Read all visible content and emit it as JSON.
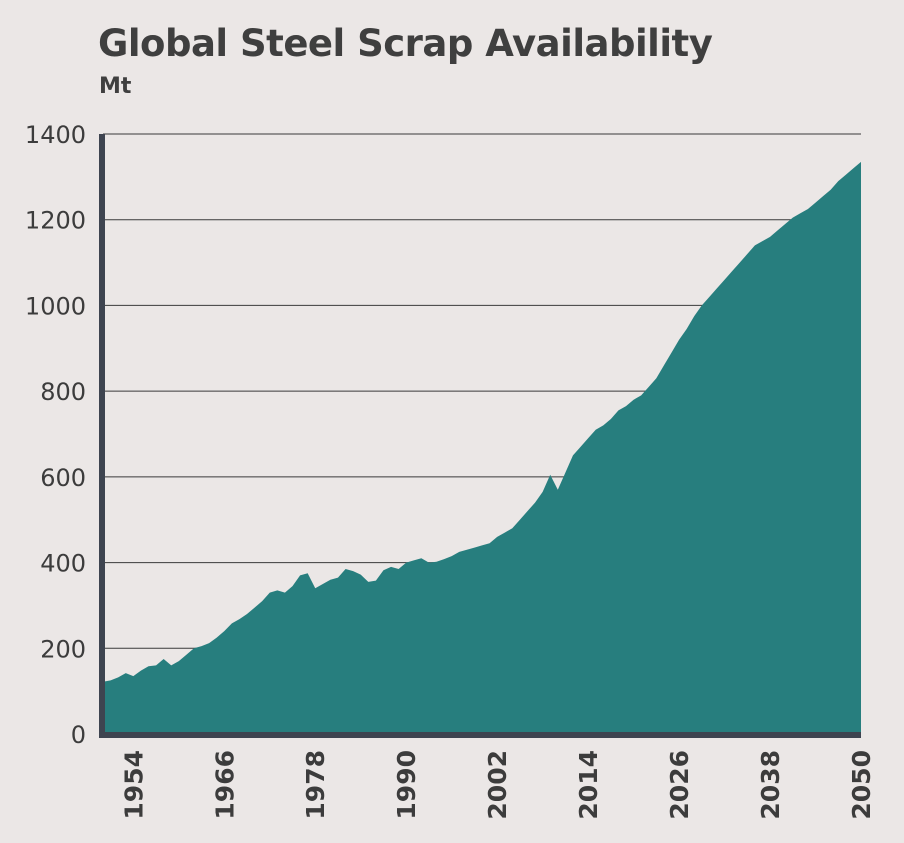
{
  "chart_data": {
    "type": "area",
    "title": "Global Steel Scrap Availability",
    "subtitle": "Mt",
    "xlabel": "",
    "ylabel": "",
    "ylim": [
      0,
      1400
    ],
    "xlim": [
      1950,
      2050
    ],
    "yticks": [
      "0",
      "200",
      "400",
      "600",
      "800",
      "1000",
      "1200",
      "1400"
    ],
    "xticks": [
      "1954",
      "1966",
      "1978",
      "1990",
      "2002",
      "2014",
      "2026",
      "2038",
      "2050"
    ],
    "grid": true,
    "color": "#277e7e",
    "x": [
      1950,
      1951,
      1952,
      1953,
      1954,
      1955,
      1956,
      1957,
      1958,
      1959,
      1960,
      1961,
      1962,
      1963,
      1964,
      1965,
      1966,
      1967,
      1968,
      1969,
      1970,
      1971,
      1972,
      1973,
      1974,
      1975,
      1976,
      1977,
      1978,
      1979,
      1980,
      1981,
      1982,
      1983,
      1984,
      1985,
      1986,
      1987,
      1988,
      1989,
      1990,
      1991,
      1992,
      1993,
      1994,
      1995,
      1996,
      1997,
      1998,
      1999,
      2000,
      2001,
      2002,
      2003,
      2004,
      2005,
      2006,
      2007,
      2008,
      2009,
      2010,
      2011,
      2012,
      2013,
      2014,
      2015,
      2016,
      2017,
      2018,
      2019,
      2020,
      2021,
      2022,
      2023,
      2024,
      2025,
      2026,
      2027,
      2028,
      2029,
      2030,
      2031,
      2032,
      2033,
      2034,
      2035,
      2036,
      2037,
      2038,
      2039,
      2040,
      2041,
      2042,
      2043,
      2044,
      2045,
      2046,
      2047,
      2048,
      2049,
      2050
    ],
    "values": [
      122,
      125,
      132,
      142,
      135,
      148,
      158,
      160,
      175,
      160,
      170,
      185,
      200,
      205,
      212,
      225,
      240,
      258,
      268,
      280,
      295,
      310,
      330,
      335,
      330,
      345,
      370,
      375,
      340,
      350,
      360,
      365,
      385,
      380,
      372,
      355,
      358,
      382,
      390,
      385,
      400,
      405,
      410,
      400,
      402,
      408,
      415,
      425,
      430,
      435,
      440,
      445,
      460,
      470,
      480,
      500,
      520,
      540,
      565,
      605,
      570,
      610,
      650,
      670,
      690,
      710,
      720,
      735,
      755,
      765,
      780,
      790,
      810,
      830,
      860,
      890,
      920,
      945,
      975,
      1000,
      1020,
      1040,
      1060,
      1080,
      1100,
      1120,
      1140,
      1150,
      1160,
      1175,
      1190,
      1205,
      1215,
      1225,
      1240,
      1255,
      1270,
      1290,
      1305,
      1320,
      1335
    ]
  }
}
